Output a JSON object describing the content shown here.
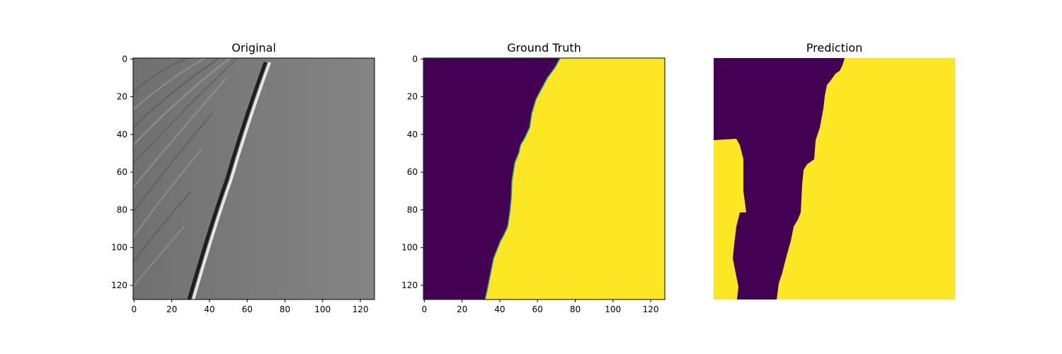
{
  "panels": [
    {
      "title": "Original",
      "kind": "seismic",
      "axes_shown": true,
      "x_ticks": [
        "0",
        "20",
        "40",
        "60",
        "80",
        "100",
        "120"
      ],
      "y_ticks": [
        "0",
        "20",
        "40",
        "60",
        "80",
        "100",
        "120"
      ],
      "x_range": [
        0,
        128
      ],
      "y_range": [
        0,
        128
      ]
    },
    {
      "title": "Ground Truth",
      "kind": "mask",
      "axes_shown": true,
      "x_ticks": [
        "0",
        "20",
        "40",
        "60",
        "80",
        "100",
        "120"
      ],
      "y_ticks": [
        "0",
        "20",
        "40",
        "60",
        "80",
        "100",
        "120"
      ],
      "x_range": [
        0,
        128
      ],
      "y_range": [
        0,
        128
      ]
    },
    {
      "title": "Prediction",
      "kind": "mask",
      "axes_shown": false,
      "x_range": [
        0,
        128
      ],
      "y_range": [
        0,
        128
      ]
    }
  ],
  "colors": {
    "class_0": "#440154",
    "class_1": "#fde725",
    "edge": "#21918c",
    "background": "#ffffff"
  }
}
